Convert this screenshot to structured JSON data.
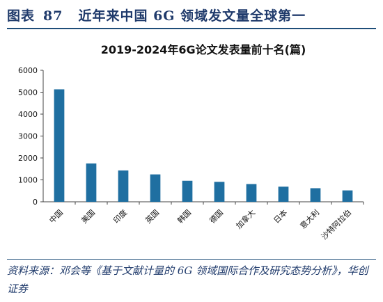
{
  "header": {
    "label": "图表",
    "number": "87",
    "title": "近年来中国 6G 领域发文量全球第一"
  },
  "chart_data": {
    "type": "bar",
    "title": "2019-2024年6G论文发表量前十名(篇)",
    "categories": [
      "中国",
      "美国",
      "印度",
      "英国",
      "韩国",
      "德国",
      "加拿大",
      "日本",
      "意大利",
      "沙特阿拉伯"
    ],
    "values": [
      5130,
      1750,
      1430,
      1250,
      960,
      910,
      810,
      690,
      620,
      520
    ],
    "ylim": [
      0,
      6000
    ],
    "yticks": [
      0,
      1000,
      2000,
      3000,
      4000,
      5000,
      6000
    ],
    "ytick_labels": [
      "0",
      "1000",
      "2000",
      "3000",
      "4000",
      "5000",
      "6000"
    ],
    "xlabel": "",
    "ylabel": "",
    "bar_color": "#1f6fa1",
    "grid": false
  },
  "source": {
    "text": "资料来源：邓会等《基于文献计量的 6G 领域国际合作及研究态势分析》，华创证券"
  },
  "colors": {
    "header": "#1f3a6b",
    "rule": "#1f4e79"
  }
}
